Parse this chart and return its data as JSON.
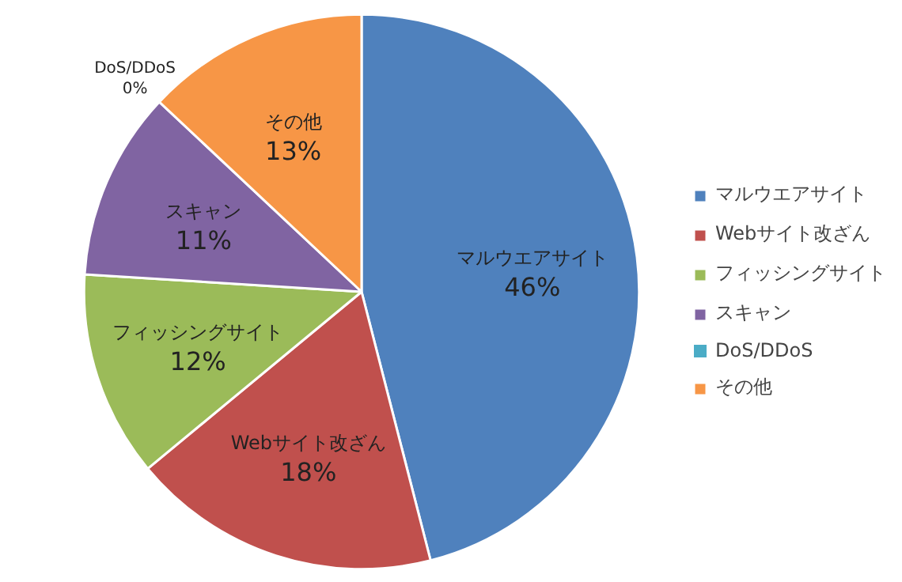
{
  "chart_data": {
    "type": "pie",
    "categories": [
      "マルウエアサイト",
      "Webサイト改ざん",
      "フィッシングサイト",
      "スキャン",
      "DoS/DDoS",
      "その他"
    ],
    "values": [
      46,
      18,
      12,
      11,
      0,
      13
    ],
    "value_labels": [
      "46%",
      "18%",
      "12%",
      "11%",
      "0%",
      "13%"
    ],
    "colors": [
      "#4f81bd",
      "#c0504d",
      "#9bbb59",
      "#8064a2",
      "#4bacc6",
      "#f79646"
    ],
    "legend": "right"
  }
}
